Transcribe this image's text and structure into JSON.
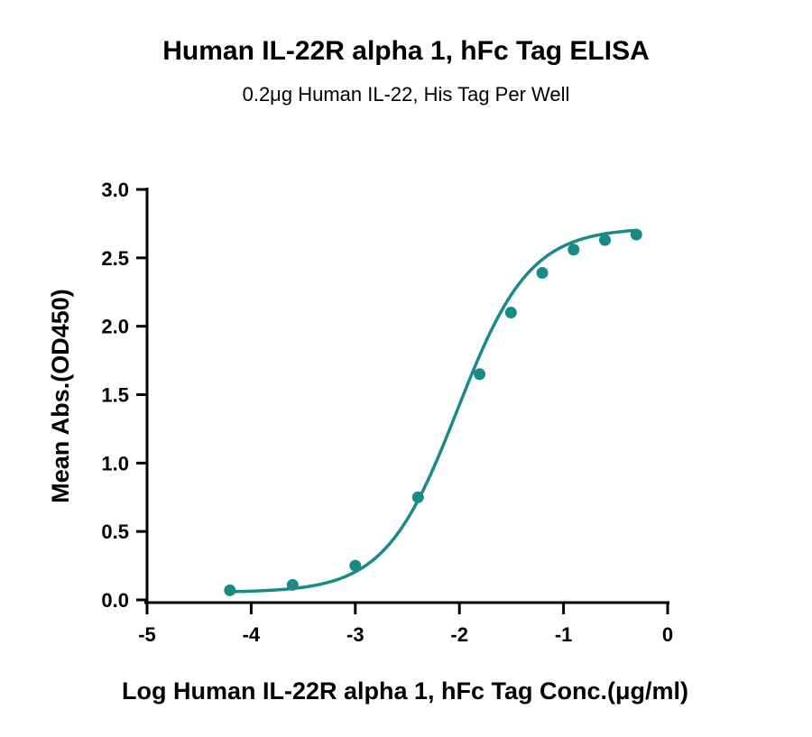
{
  "chart_data": {
    "type": "scatter",
    "title": "Human IL-22R alpha 1, hFc Tag ELISA",
    "subtitle": "0.2μg Human IL-22, His Tag Per Well",
    "xlabel": "Log Human IL-22R alpha 1, hFc Tag Conc.(μg/ml)",
    "ylabel": "Mean Abs.(OD450)",
    "xlim": [
      -5,
      0
    ],
    "ylim": [
      0,
      3.0
    ],
    "xticks": [
      "-5",
      "-4",
      "-3",
      "-2",
      "-1",
      "0"
    ],
    "yticks": [
      "0.0",
      "0.5",
      "1.0",
      "1.5",
      "2.0",
      "2.5",
      "3.0"
    ],
    "grid": false,
    "color": "#1a8a87",
    "fit": "sigmoidal 4PL curve",
    "series": [
      {
        "x": [
          -4.204,
          -3.602,
          -3.0,
          -2.398,
          -1.806,
          -1.505,
          -1.204,
          -0.903,
          -0.602,
          -0.301
        ],
        "y": [
          0.07,
          0.11,
          0.25,
          0.75,
          1.65,
          2.1,
          2.39,
          2.56,
          2.63,
          2.67
        ]
      }
    ]
  }
}
